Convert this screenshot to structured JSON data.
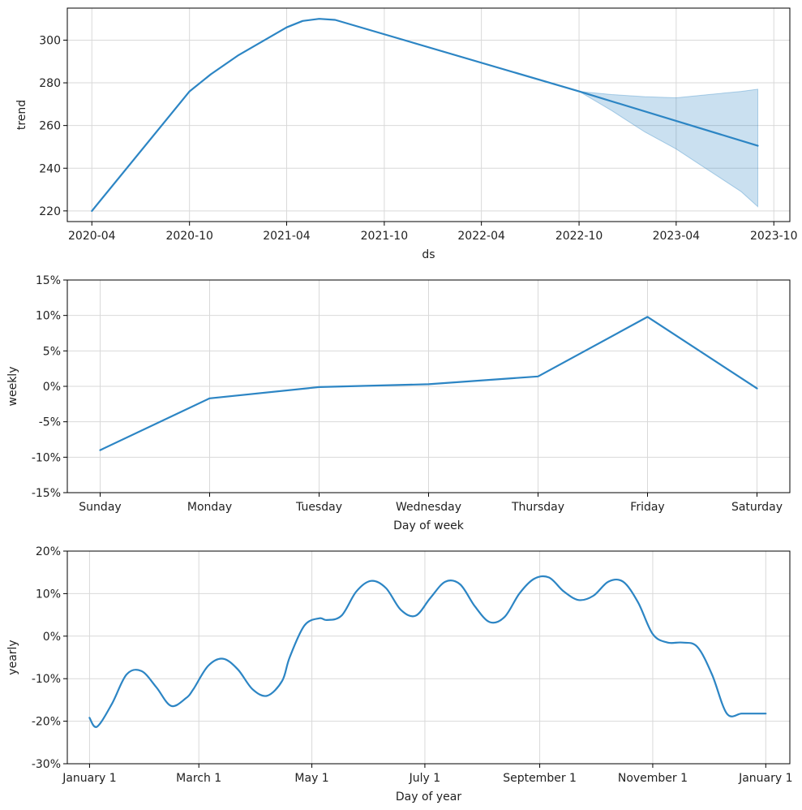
{
  "chart_data": [
    {
      "type": "line",
      "xlabel": "ds",
      "ylabel": "trend",
      "x_type": "date",
      "xlim": [
        "2020-02-15",
        "2023-10-31"
      ],
      "ylim": [
        215,
        315
      ],
      "x_ticks": [
        "2020-04-01",
        "2020-10-01",
        "2021-04-01",
        "2021-10-01",
        "2022-04-01",
        "2022-10-01",
        "2023-04-01",
        "2023-10-01"
      ],
      "x_tick_labels": [
        "2020-04",
        "2020-10",
        "2021-04",
        "2021-10",
        "2022-04",
        "2022-10",
        "2023-04",
        "2023-10"
      ],
      "y_ticks": [
        220,
        240,
        260,
        280,
        300
      ],
      "y_tick_labels": [
        "220",
        "240",
        "260",
        "280",
        "300"
      ],
      "grid": true,
      "line_color": "#2c85c4",
      "band_color": "#2c85c4",
      "series": [
        {
          "values": [
            {
              "x": "2020-04-01",
              "y": 220
            },
            {
              "x": "2020-10-01",
              "y": 276
            },
            {
              "x": "2020-11-10",
              "y": 284
            },
            {
              "x": "2021-01-01",
              "y": 293
            },
            {
              "x": "2021-04-01",
              "y": 306
            },
            {
              "x": "2021-05-01",
              "y": 309
            },
            {
              "x": "2021-06-01",
              "y": 310
            },
            {
              "x": "2021-07-01",
              "y": 309.5
            },
            {
              "x": "2022-10-01",
              "y": 276
            },
            {
              "x": "2023-09-01",
              "y": 250.5
            }
          ]
        }
      ],
      "uncertainty_band": [
        {
          "x": "2022-10-01",
          "lower": 276,
          "upper": 276
        },
        {
          "x": "2022-12-01",
          "lower": 267,
          "upper": 274.5
        },
        {
          "x": "2023-02-01",
          "lower": 257,
          "upper": 273.5
        },
        {
          "x": "2023-04-01",
          "lower": 249,
          "upper": 273
        },
        {
          "x": "2023-06-01",
          "lower": 239,
          "upper": 274.5
        },
        {
          "x": "2023-08-01",
          "lower": 229,
          "upper": 276
        },
        {
          "x": "2023-09-01",
          "lower": 222,
          "upper": 277
        }
      ]
    },
    {
      "type": "line",
      "xlabel": "Day of week",
      "ylabel": "weekly",
      "categories": [
        "Sunday",
        "Monday",
        "Tuesday",
        "Wednesday",
        "Thursday",
        "Friday",
        "Saturday"
      ],
      "xlim": [
        -0.3,
        6.3
      ],
      "ylim": [
        -15,
        15
      ],
      "y_ticks": [
        -15,
        -10,
        -5,
        0,
        5,
        10,
        15
      ],
      "y_tick_labels": [
        "-15%",
        "-10%",
        "-5%",
        "0%",
        "5%",
        "10%",
        "15%"
      ],
      "grid": true,
      "line_color": "#2c85c4",
      "series": [
        {
          "values": [
            -9.0,
            -1.7,
            -0.1,
            0.3,
            1.4,
            9.8,
            -0.3
          ]
        }
      ]
    },
    {
      "type": "line",
      "xlabel": "Day of year",
      "ylabel": "yearly",
      "xlim": [
        -12,
        378
      ],
      "ylim": [
        -30,
        20
      ],
      "x_ticks": [
        0,
        59,
        120,
        181,
        243,
        304,
        365
      ],
      "x_tick_labels": [
        "January 1",
        "March 1",
        "May 1",
        "July 1",
        "September 1",
        "November 1",
        "January 1"
      ],
      "y_ticks": [
        -30,
        -20,
        -10,
        0,
        10,
        20
      ],
      "y_tick_labels": [
        "-30%",
        "-20%",
        "-10%",
        "0%",
        "10%",
        "20%"
      ],
      "grid": true,
      "line_color": "#2c85c4",
      "series": [
        {
          "x": [
            0,
            4,
            12,
            20,
            28,
            36,
            44,
            52,
            56,
            64,
            72,
            80,
            88,
            96,
            104,
            108,
            116,
            124,
            128,
            136,
            144,
            152,
            160,
            168,
            176,
            184,
            192,
            200,
            208,
            216,
            224,
            232,
            240,
            248,
            256,
            264,
            272,
            280,
            288,
            296,
            304,
            312,
            320,
            328,
            336,
            344,
            352,
            360,
            365
          ],
          "values": [
            -19.2,
            -21.3,
            -16,
            -9,
            -8.2,
            -12,
            -16.4,
            -14.6,
            -12.5,
            -7,
            -5.3,
            -7.8,
            -12.5,
            -14,
            -10.5,
            -5,
            2.5,
            4.2,
            3.8,
            4.8,
            10.5,
            13,
            11.3,
            6.2,
            4.8,
            9,
            12.8,
            12.2,
            7,
            3.3,
            4.5,
            10,
            13.5,
            13.8,
            10.5,
            8.5,
            9.5,
            12.8,
            12.8,
            8,
            0.5,
            -1.5,
            -1.5,
            -2.5,
            -9,
            -18.2,
            -18.2,
            -18.2,
            -18.2
          ]
        }
      ]
    }
  ]
}
